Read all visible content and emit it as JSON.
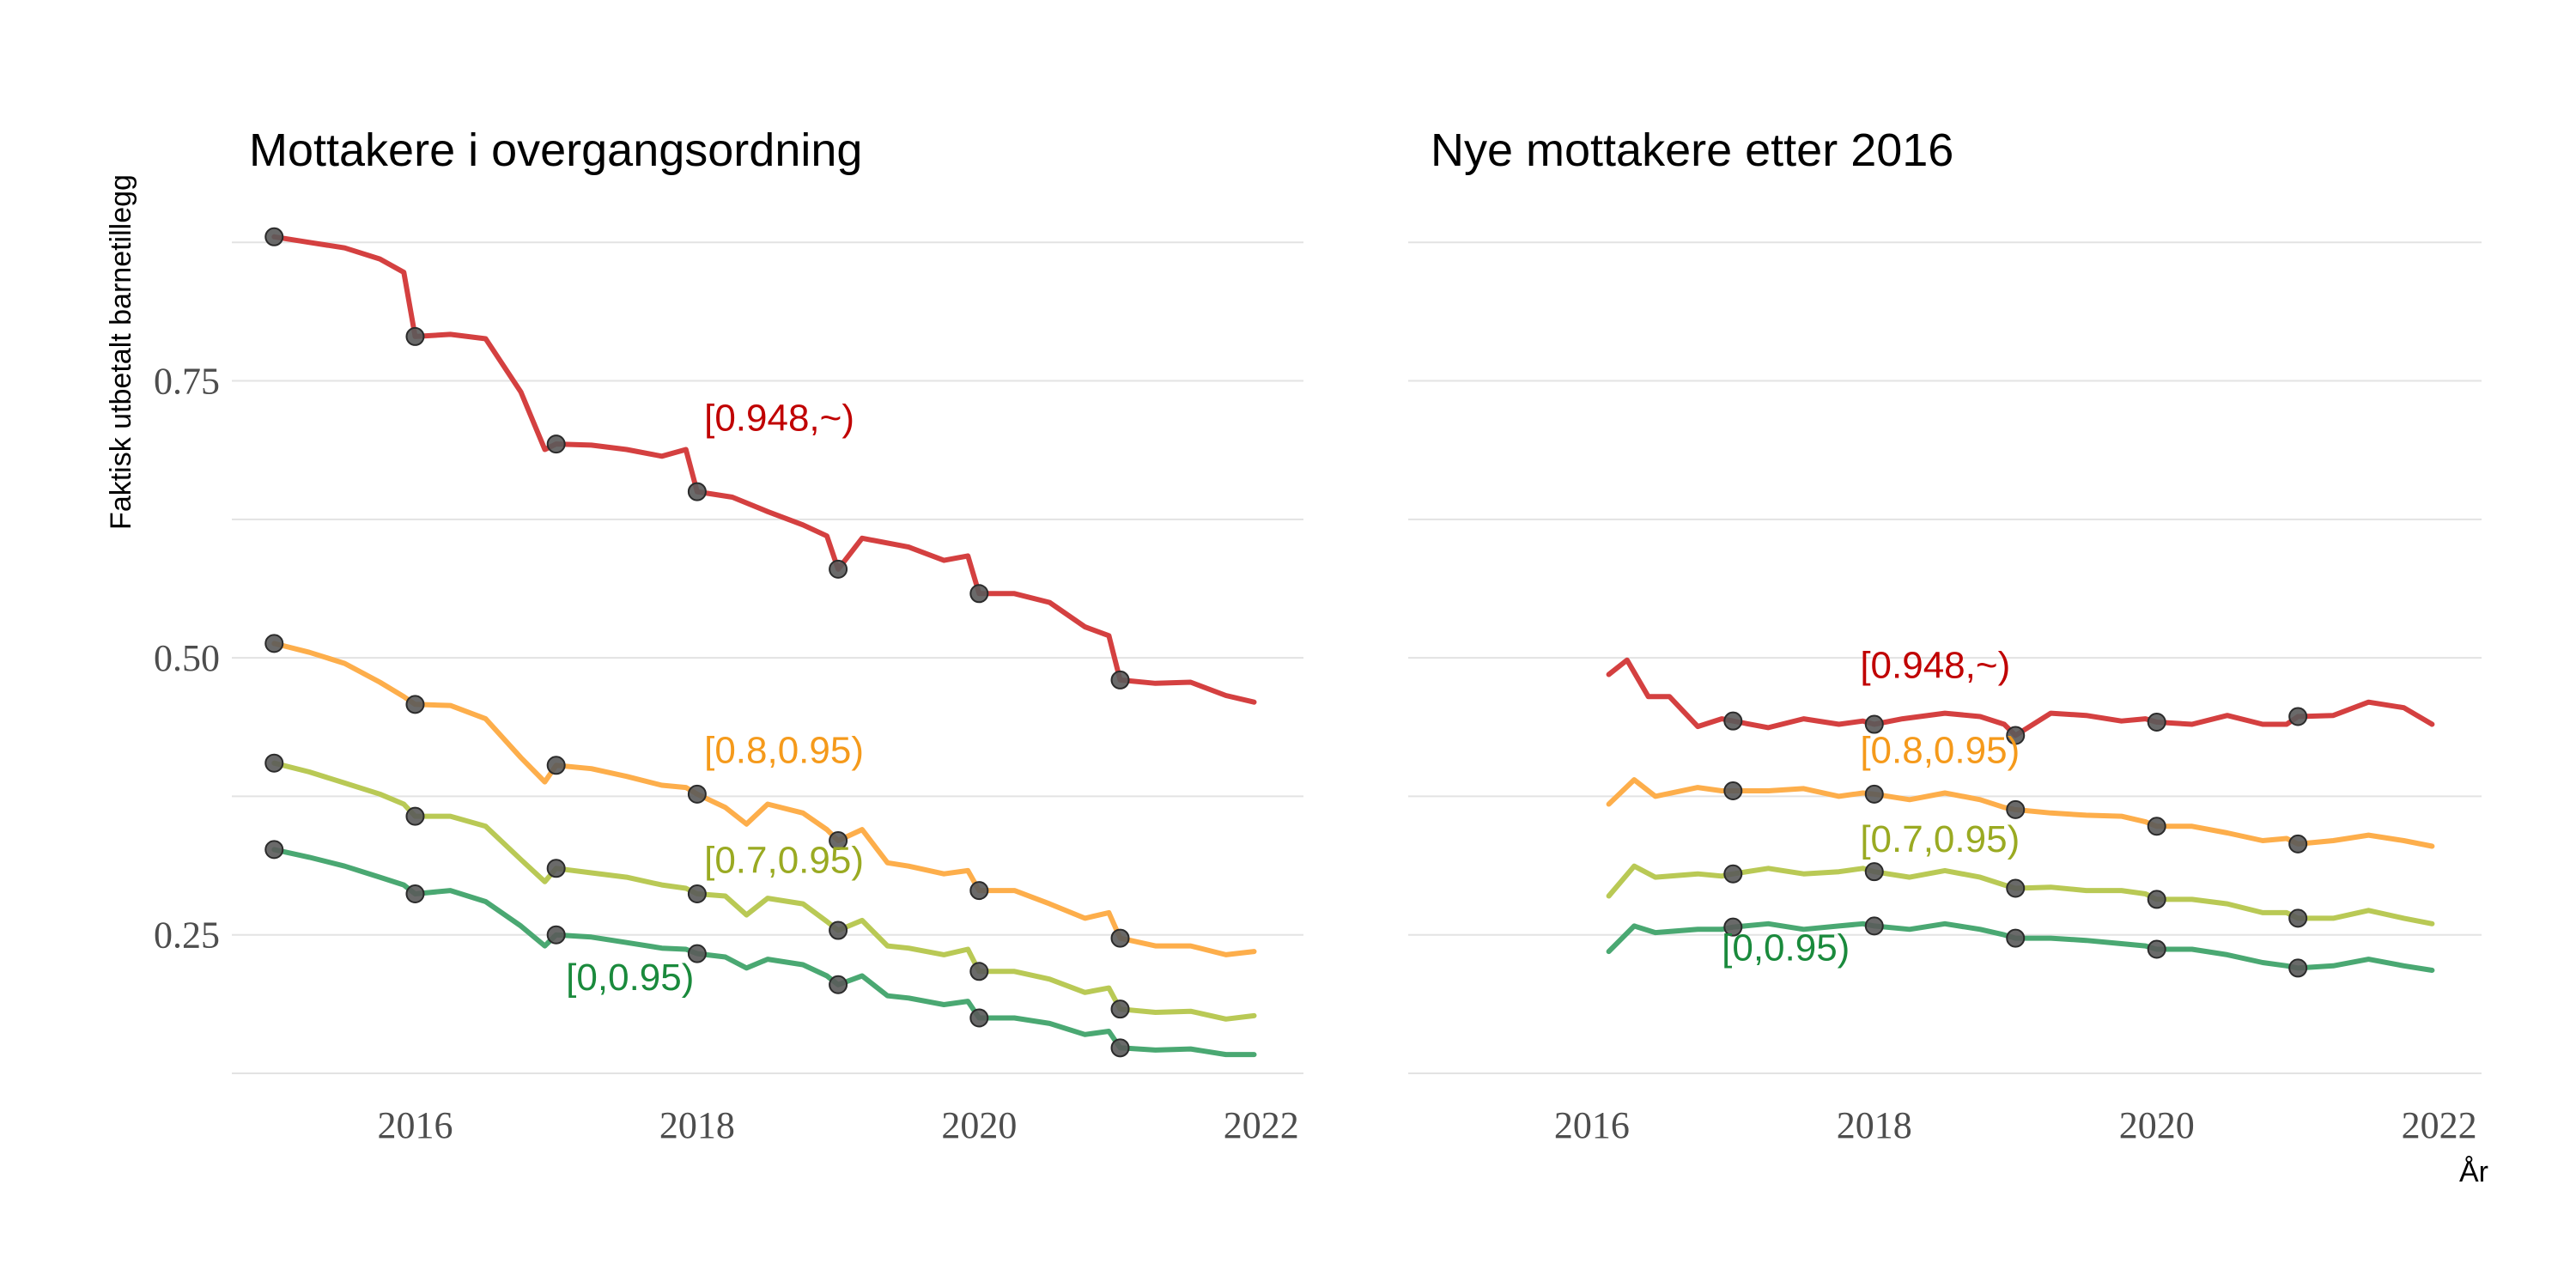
{
  "chart_data": {
    "type": "line",
    "ylabel": "Faktisk utbetalt barnetillegg",
    "xlabel": "År",
    "x_ticks": [
      2016,
      2018,
      2020,
      2022
    ],
    "y_ticks": [
      0.25,
      0.5,
      0.75
    ],
    "y_tick_labels": [
      "0.25",
      "0.50",
      "0.75"
    ],
    "xlim": [
      2014.7,
      2022.3
    ],
    "ylim": [
      0.125,
      0.9
    ],
    "grid": true,
    "legend": "inline labels",
    "colors": {
      "[0.948,~)": "#d44040",
      "[0.8,0.95)": "#fdae4b",
      "[0.7,0.95)": "#b9c955",
      "[0,0.95)": "#4aa872"
    },
    "label_colors": {
      "[0.948,~)": "#c00000",
      "[0.8,0.95)": "#f59a1b",
      "[0.7,0.95)": "#9aaa22",
      "[0,0.95)": "#1a8a3c"
    },
    "panels": [
      {
        "title": "Mottakere i overgangsordning",
        "series": [
          {
            "name": "[0.948,~)",
            "label_x": 2018.05,
            "label_y": 0.705,
            "x": [
              2015.0,
              2015.25,
              2015.5,
              2015.75,
              2015.92,
              2016.0,
              2016.25,
              2016.5,
              2016.75,
              2016.92,
              2017.0,
              2017.25,
              2017.5,
              2017.75,
              2017.92,
              2018.0,
              2018.25,
              2018.5,
              2018.75,
              2018.92,
              2019.0,
              2019.17,
              2019.5,
              2019.75,
              2019.92,
              2020.0,
              2020.25,
              2020.5,
              2020.75,
              2020.92,
              2021.0,
              2021.25,
              2021.5,
              2021.75,
              2021.95
            ],
            "y": [
              0.88,
              0.875,
              0.87,
              0.86,
              0.848,
              0.79,
              0.792,
              0.788,
              0.74,
              0.688,
              0.693,
              0.692,
              0.688,
              0.682,
              0.688,
              0.65,
              0.645,
              0.632,
              0.62,
              0.61,
              0.58,
              0.608,
              0.6,
              0.588,
              0.592,
              0.558,
              0.558,
              0.55,
              0.528,
              0.52,
              0.48,
              0.477,
              0.478,
              0.466,
              0.46
            ],
            "points_x": [
              2015,
              2016,
              2017,
              2018,
              2019,
              2020,
              2021
            ],
            "points_y": [
              0.88,
              0.79,
              0.693,
              0.65,
              0.58,
              0.558,
              0.48
            ]
          },
          {
            "name": "[0.8,0.95)",
            "label_x": 2018.05,
            "label_y": 0.405,
            "x": [
              2015.0,
              2015.25,
              2015.5,
              2015.75,
              2015.92,
              2016.0,
              2016.25,
              2016.5,
              2016.75,
              2016.92,
              2017.0,
              2017.25,
              2017.5,
              2017.75,
              2017.92,
              2018.0,
              2018.2,
              2018.35,
              2018.5,
              2018.75,
              2018.92,
              2019.0,
              2019.17,
              2019.35,
              2019.5,
              2019.75,
              2019.92,
              2020.0,
              2020.25,
              2020.5,
              2020.75,
              2020.92,
              2021.0,
              2021.25,
              2021.5,
              2021.75,
              2021.95
            ],
            "y": [
              0.513,
              0.505,
              0.495,
              0.478,
              0.465,
              0.458,
              0.457,
              0.445,
              0.41,
              0.388,
              0.403,
              0.4,
              0.393,
              0.385,
              0.383,
              0.377,
              0.365,
              0.35,
              0.368,
              0.36,
              0.345,
              0.335,
              0.345,
              0.315,
              0.312,
              0.305,
              0.308,
              0.29,
              0.29,
              0.278,
              0.265,
              0.27,
              0.247,
              0.24,
              0.24,
              0.232,
              0.235
            ],
            "points_x": [
              2015,
              2016,
              2017,
              2018,
              2019,
              2020,
              2021
            ],
            "points_y": [
              0.513,
              0.458,
              0.403,
              0.377,
              0.335,
              0.29,
              0.247
            ]
          },
          {
            "name": "[0.7,0.95)",
            "label_x": 2018.05,
            "label_y": 0.306,
            "x": [
              2015.0,
              2015.25,
              2015.5,
              2015.75,
              2015.92,
              2016.0,
              2016.25,
              2016.5,
              2016.75,
              2016.92,
              2017.0,
              2017.25,
              2017.5,
              2017.75,
              2017.92,
              2018.0,
              2018.2,
              2018.35,
              2018.5,
              2018.75,
              2018.92,
              2019.0,
              2019.17,
              2019.35,
              2019.5,
              2019.75,
              2019.92,
              2020.0,
              2020.25,
              2020.5,
              2020.75,
              2020.92,
              2021.0,
              2021.25,
              2021.5,
              2021.75,
              2021.95
            ],
            "y": [
              0.405,
              0.397,
              0.387,
              0.377,
              0.368,
              0.357,
              0.357,
              0.348,
              0.318,
              0.298,
              0.31,
              0.306,
              0.302,
              0.295,
              0.292,
              0.287,
              0.285,
              0.268,
              0.283,
              0.278,
              0.262,
              0.254,
              0.263,
              0.24,
              0.238,
              0.232,
              0.237,
              0.217,
              0.217,
              0.21,
              0.198,
              0.202,
              0.183,
              0.18,
              0.181,
              0.174,
              0.177
            ],
            "points_x": [
              2015,
              2016,
              2017,
              2018,
              2019,
              2020,
              2021
            ],
            "points_y": [
              0.405,
              0.357,
              0.31,
              0.287,
              0.254,
              0.217,
              0.183
            ]
          },
          {
            "name": "[0,0.95)",
            "label_x": 2017.07,
            "label_y": 0.2,
            "x": [
              2015.0,
              2015.25,
              2015.5,
              2015.75,
              2015.92,
              2016.0,
              2016.25,
              2016.5,
              2016.75,
              2016.92,
              2017.0,
              2017.25,
              2017.5,
              2017.75,
              2017.92,
              2018.0,
              2018.2,
              2018.35,
              2018.5,
              2018.75,
              2018.92,
              2019.0,
              2019.17,
              2019.35,
              2019.5,
              2019.75,
              2019.92,
              2020.0,
              2020.25,
              2020.5,
              2020.75,
              2020.92,
              2021.0,
              2021.25,
              2021.5,
              2021.75,
              2021.95
            ],
            "y": [
              0.327,
              0.32,
              0.312,
              0.302,
              0.295,
              0.287,
              0.29,
              0.28,
              0.258,
              0.24,
              0.25,
              0.248,
              0.243,
              0.238,
              0.237,
              0.233,
              0.23,
              0.22,
              0.228,
              0.223,
              0.213,
              0.205,
              0.213,
              0.195,
              0.193,
              0.187,
              0.19,
              0.175,
              0.175,
              0.17,
              0.16,
              0.163,
              0.148,
              0.146,
              0.147,
              0.142,
              0.142
            ],
            "points_x": [
              2015,
              2016,
              2017,
              2018,
              2019,
              2020,
              2021
            ],
            "points_y": [
              0.327,
              0.287,
              0.25,
              0.233,
              0.205,
              0.175,
              0.148
            ]
          }
        ]
      },
      {
        "title": "Nye mottakere etter 2016",
        "series": [
          {
            "name": "[0.948,~)",
            "label_x": 2017.9,
            "label_y": 0.482,
            "x": [
              2016.12,
              2016.25,
              2016.4,
              2016.55,
              2016.75,
              2016.92,
              2017.0,
              2017.25,
              2017.5,
              2017.75,
              2017.92,
              2018.0,
              2018.2,
              2018.5,
              2018.75,
              2018.92,
              2019.0,
              2019.25,
              2019.5,
              2019.75,
              2019.92,
              2020.0,
              2020.25,
              2020.5,
              2020.75,
              2020.92,
              2021.0,
              2021.25,
              2021.5,
              2021.75,
              2021.95
            ],
            "y": [
              0.485,
              0.498,
              0.465,
              0.465,
              0.438,
              0.445,
              0.443,
              0.437,
              0.445,
              0.44,
              0.443,
              0.44,
              0.445,
              0.45,
              0.447,
              0.44,
              0.43,
              0.45,
              0.448,
              0.443,
              0.445,
              0.442,
              0.44,
              0.448,
              0.44,
              0.44,
              0.447,
              0.448,
              0.46,
              0.455,
              0.44
            ],
            "points_x": [
              2017,
              2018,
              2019,
              2020,
              2021
            ],
            "points_y": [
              0.443,
              0.44,
              0.43,
              0.442,
              0.447
            ]
          },
          {
            "name": "[0.8,0.95)",
            "label_x": 2017.9,
            "label_y": 0.405,
            "x": [
              2016.12,
              2016.3,
              2016.45,
              2016.75,
              2016.92,
              2017.0,
              2017.25,
              2017.5,
              2017.75,
              2017.92,
              2018.0,
              2018.25,
              2018.5,
              2018.75,
              2018.92,
              2019.0,
              2019.25,
              2019.5,
              2019.75,
              2019.92,
              2020.0,
              2020.25,
              2020.5,
              2020.75,
              2020.92,
              2021.0,
              2021.25,
              2021.5,
              2021.75,
              2021.95
            ],
            "y": [
              0.368,
              0.39,
              0.375,
              0.383,
              0.38,
              0.38,
              0.38,
              0.382,
              0.375,
              0.378,
              0.377,
              0.372,
              0.378,
              0.372,
              0.365,
              0.363,
              0.36,
              0.358,
              0.357,
              0.352,
              0.348,
              0.348,
              0.342,
              0.335,
              0.337,
              0.332,
              0.335,
              0.34,
              0.335,
              0.33
            ],
            "points_x": [
              2017,
              2018,
              2019,
              2020,
              2021
            ],
            "points_y": [
              0.38,
              0.377,
              0.363,
              0.348,
              0.332
            ]
          },
          {
            "name": "[0.7,0.95)",
            "label_x": 2017.9,
            "label_y": 0.325,
            "x": [
              2016.12,
              2016.3,
              2016.45,
              2016.75,
              2016.92,
              2017.0,
              2017.25,
              2017.5,
              2017.75,
              2017.92,
              2018.0,
              2018.25,
              2018.5,
              2018.75,
              2018.92,
              2019.0,
              2019.25,
              2019.5,
              2019.75,
              2019.92,
              2020.0,
              2020.25,
              2020.5,
              2020.75,
              2020.92,
              2021.0,
              2021.25,
              2021.5,
              2021.75,
              2021.95
            ],
            "y": [
              0.285,
              0.312,
              0.302,
              0.305,
              0.303,
              0.305,
              0.31,
              0.305,
              0.307,
              0.31,
              0.307,
              0.302,
              0.308,
              0.302,
              0.295,
              0.292,
              0.293,
              0.29,
              0.29,
              0.287,
              0.282,
              0.282,
              0.278,
              0.27,
              0.27,
              0.265,
              0.265,
              0.272,
              0.265,
              0.26
            ],
            "points_x": [
              2017,
              2018,
              2019,
              2020,
              2021
            ],
            "points_y": [
              0.305,
              0.307,
              0.292,
              0.282,
              0.265
            ]
          },
          {
            "name": "[0,0.95)",
            "label_x": 2016.92,
            "label_y": 0.227,
            "x": [
              2016.12,
              2016.3,
              2016.45,
              2016.75,
              2016.92,
              2017.0,
              2017.25,
              2017.5,
              2017.75,
              2017.92,
              2018.0,
              2018.25,
              2018.5,
              2018.75,
              2018.92,
              2019.0,
              2019.25,
              2019.5,
              2019.75,
              2019.92,
              2020.0,
              2020.25,
              2020.5,
              2020.75,
              2020.92,
              2021.0,
              2021.25,
              2021.5,
              2021.75,
              2021.95
            ],
            "y": [
              0.235,
              0.258,
              0.252,
              0.255,
              0.255,
              0.257,
              0.26,
              0.255,
              0.258,
              0.26,
              0.258,
              0.255,
              0.26,
              0.255,
              0.25,
              0.247,
              0.247,
              0.245,
              0.242,
              0.24,
              0.237,
              0.237,
              0.232,
              0.225,
              0.222,
              0.22,
              0.222,
              0.228,
              0.222,
              0.218
            ],
            "points_x": [
              2017,
              2018,
              2019,
              2020,
              2021
            ],
            "points_y": [
              0.257,
              0.258,
              0.247,
              0.237,
              0.22
            ]
          }
        ]
      }
    ]
  }
}
